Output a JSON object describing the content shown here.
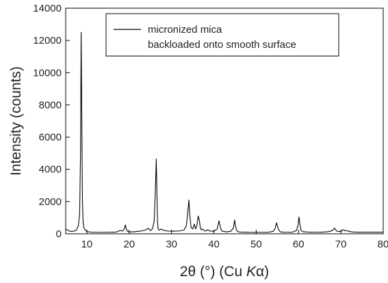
{
  "chart_data": {
    "type": "line",
    "xlabel": "2θ (°) (Cu Kα)",
    "xlabel_parts": {
      "prefix": "2θ (°) (Cu ",
      "italic": "K",
      "suffix": "α)"
    },
    "ylabel": "Intensity (counts)",
    "xlim": [
      5,
      80
    ],
    "ylim": [
      0,
      14000
    ],
    "x_ticks": [
      10,
      20,
      30,
      40,
      50,
      60,
      70,
      80
    ],
    "y_ticks": [
      0,
      2000,
      4000,
      6000,
      8000,
      10000,
      12000,
      14000
    ],
    "grid": false,
    "legend_position": "top-right",
    "series": [
      {
        "name": "micronized mica backloaded onto smooth surface",
        "legend_lines": [
          "micronized mica",
          "backloaded onto smooth surface"
        ],
        "color": "#000000",
        "x": [
          5.0,
          5.5,
          6.0,
          6.5,
          7.0,
          7.5,
          8.0,
          8.3,
          8.5,
          8.65,
          8.8,
          8.95,
          9.1,
          9.3,
          9.6,
          10.0,
          11.0,
          12.0,
          13.0,
          14.0,
          15.0,
          16.0,
          17.0,
          17.8,
          18.5,
          18.9,
          19.1,
          19.3,
          19.6,
          20.0,
          21.0,
          22.0,
          23.0,
          24.0,
          24.5,
          25.0,
          25.5,
          25.9,
          26.2,
          26.4,
          26.55,
          26.7,
          26.85,
          27.1,
          27.5,
          28.0,
          28.5,
          29.0,
          30.0,
          31.0,
          32.0,
          33.0,
          33.5,
          33.9,
          34.1,
          34.3,
          34.6,
          35.0,
          35.4,
          35.7,
          36.0,
          36.3,
          36.6,
          36.8,
          37.0,
          37.3,
          37.7,
          38.0,
          38.5,
          39.0,
          40.0,
          40.8,
          41.2,
          41.5,
          41.8,
          42.2,
          43.0,
          44.0,
          44.6,
          44.9,
          45.1,
          45.4,
          45.8,
          46.5,
          47.5,
          48.5,
          50.0,
          51.0,
          52.0,
          53.0,
          54.0,
          54.5,
          54.8,
          55.0,
          55.3,
          55.7,
          56.5,
          57.5,
          58.5,
          59.5,
          59.9,
          60.1,
          60.3,
          60.6,
          61.0,
          62.0,
          63.0,
          64.0,
          65.0,
          66.0,
          67.0,
          68.0,
          68.5,
          68.9,
          69.2,
          69.6,
          70.0,
          70.5,
          70.9,
          71.2,
          71.6,
          72.0,
          72.5,
          73.0,
          74.0,
          75.0,
          76.0,
          77.0,
          78.0,
          79.0,
          80.0
        ],
        "y": [
          300,
          220,
          160,
          150,
          170,
          220,
          500,
          1300,
          5000,
          12500,
          7500,
          2200,
          800,
          380,
          230,
          140,
          100,
          95,
          90,
          90,
          95,
          100,
          110,
          200,
          180,
          350,
          550,
          300,
          150,
          120,
          120,
          150,
          180,
          250,
          350,
          200,
          300,
          800,
          2800,
          4650,
          2500,
          700,
          300,
          220,
          300,
          230,
          200,
          170,
          160,
          170,
          180,
          250,
          500,
          1500,
          2100,
          1200,
          400,
          300,
          600,
          300,
          500,
          1100,
          800,
          350,
          250,
          300,
          200,
          170,
          250,
          180,
          150,
          300,
          800,
          450,
          200,
          150,
          120,
          160,
          350,
          850,
          500,
          200,
          120,
          100,
          100,
          90,
          90,
          90,
          90,
          100,
          150,
          350,
          680,
          500,
          250,
          120,
          100,
          95,
          100,
          200,
          550,
          1050,
          600,
          200,
          130,
          110,
          100,
          95,
          100,
          110,
          130,
          200,
          350,
          200,
          150,
          150,
          130,
          250,
          200,
          200,
          180,
          150,
          120,
          110,
          100,
          100,
          100,
          100,
          100,
          100,
          100
        ]
      }
    ]
  }
}
